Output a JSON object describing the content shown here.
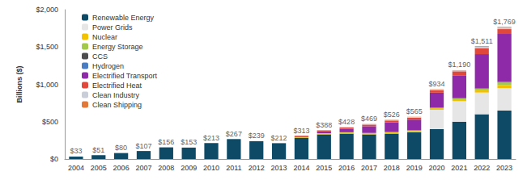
{
  "chart_data": {
    "type": "bar",
    "stacked": true,
    "grid": false,
    "legend": "upper left",
    "y_label": "Billions ($)",
    "categories": [
      "2004",
      "2005",
      "2006",
      "2007",
      "2008",
      "2009",
      "2010",
      "2011",
      "2012",
      "2013",
      "2014",
      "2015",
      "2016",
      "2017",
      "2018",
      "2019",
      "2020",
      "2021",
      "2022",
      "2023"
    ],
    "ylim": [
      0,
      2000
    ],
    "yticks": [
      {
        "value": 0,
        "label": "$0"
      },
      {
        "value": 500,
        "label": "$500"
      },
      {
        "value": 1000,
        "label": "$1,000"
      },
      {
        "value": 1500,
        "label": "$1,500"
      },
      {
        "value": 2000,
        "label": "$2,000"
      }
    ],
    "totals": [
      33,
      51,
      80,
      107,
      156,
      153,
      213,
      267,
      239,
      212,
      313,
      388,
      428,
      469,
      526,
      565,
      934,
      1190,
      1511,
      1769
    ],
    "total_labels": [
      "$33",
      "$51",
      "$80",
      "$107",
      "$156",
      "$153",
      "$213",
      "$267",
      "$239",
      "$212",
      "$313",
      "$388",
      "$428",
      "$469",
      "$526",
      "$565",
      "$934",
      "$1,190",
      "$1,511",
      "$1,769"
    ],
    "series": [
      {
        "name": "Renewable Energy",
        "color": "#0e4a66",
        "values": [
          33,
          51,
          80,
          107,
          156,
          153,
          213,
          267,
          239,
          212,
          285,
          330,
          340,
          330,
          340,
          360,
          400,
          500,
          600,
          650
        ]
      },
      {
        "name": "Power Grids",
        "color": "#e6e6e6",
        "values": [
          0,
          0,
          0,
          0,
          0,
          0,
          0,
          0,
          0,
          0,
          0,
          0,
          0,
          0,
          0,
          0,
          260,
          275,
          290,
          300
        ]
      },
      {
        "name": "Nuclear",
        "color": "#f2c200",
        "values": [
          0,
          0,
          0,
          0,
          0,
          0,
          0,
          0,
          0,
          0,
          10,
          12,
          14,
          15,
          16,
          17,
          20,
          25,
          30,
          40
        ]
      },
      {
        "name": "Energy Storage",
        "color": "#a3c94a",
        "values": [
          0,
          0,
          0,
          0,
          0,
          0,
          0,
          0,
          0,
          0,
          0,
          3,
          4,
          4,
          5,
          6,
          5,
          12,
          20,
          35
        ]
      },
      {
        "name": "CCS",
        "color": "#4d4d4d",
        "values": [
          0,
          0,
          0,
          0,
          0,
          0,
          0,
          0,
          0,
          0,
          0,
          0,
          0,
          0,
          0,
          0,
          2,
          2,
          3,
          4
        ]
      },
      {
        "name": "Hydrogen",
        "color": "#4a7cc2",
        "values": [
          0,
          0,
          0,
          0,
          0,
          0,
          0,
          0,
          0,
          0,
          0,
          0,
          0,
          0,
          0,
          0,
          1,
          1,
          2,
          6
        ]
      },
      {
        "name": "Electrified Transport",
        "color": "#8e2aa8",
        "values": [
          0,
          0,
          0,
          0,
          0,
          0,
          0,
          0,
          0,
          0,
          10,
          25,
          45,
          90,
          130,
          145,
          200,
          300,
          460,
          640
        ]
      },
      {
        "name": "Electrified Heat",
        "color": "#e0483c",
        "values": [
          0,
          0,
          0,
          0,
          0,
          0,
          0,
          0,
          0,
          0,
          8,
          15,
          18,
          22,
          25,
          27,
          35,
          60,
          80,
          65
        ]
      },
      {
        "name": "Clean Industry",
        "color": "#c9cdd8",
        "values": [
          0,
          0,
          0,
          0,
          0,
          0,
          0,
          0,
          0,
          0,
          0,
          3,
          4,
          5,
          6,
          6,
          7,
          10,
          18,
          20
        ]
      },
      {
        "name": "Clean Shipping",
        "color": "#e0793a",
        "values": [
          0,
          0,
          0,
          0,
          0,
          0,
          0,
          0,
          0,
          0,
          0,
          0,
          3,
          3,
          4,
          4,
          4,
          5,
          8,
          9
        ]
      }
    ]
  }
}
